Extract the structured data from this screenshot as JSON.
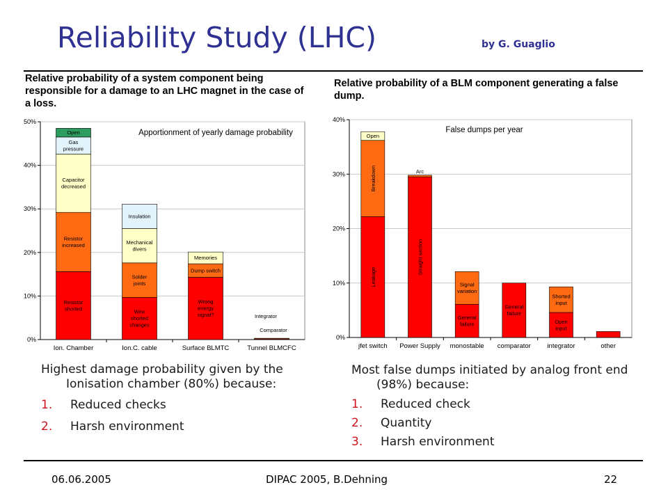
{
  "slide": {
    "title": "Reliability Study (LHC)",
    "byline": "by G. Guaglio",
    "left_caption": "Relative probability of a system component being responsible for a damage to an LHC magnet in the case of a loss.",
    "right_caption": "Relative probability of a BLM component generating a false dump.",
    "left_text": {
      "lead": "Highest damage probability given by the Ionisation chamber (80%) because:",
      "items": [
        {
          "num": "1.",
          "text": "Reduced checks"
        },
        {
          "num": "2.",
          "text": "Harsh environment"
        }
      ]
    },
    "right_text": {
      "lead": "Most false dumps initiated by analog front end (98%) because:",
      "items": [
        {
          "num": "1.",
          "text": "Reduced check"
        },
        {
          "num": "2.",
          "text": "Quantity"
        },
        {
          "num": "3.",
          "text": "Harsh environment"
        }
      ]
    },
    "footer": {
      "date": "06.06.2005",
      "center": "DIPAC 2005, B.Dehning",
      "page": "22"
    }
  },
  "colors": {
    "title": "#2e3092",
    "red": "#ff0000",
    "orange": "#ff6a13",
    "cream": "#ffffc8",
    "light_blue": "#e2f3fb",
    "green": "#2c9c5f",
    "list_number": "#d0121b"
  },
  "chart_data": [
    {
      "type": "bar",
      "stacked": true,
      "title": "Apportionment of yearly damage probability",
      "ylim": [
        0,
        50
      ],
      "yticks": [
        0,
        10,
        20,
        30,
        40,
        50
      ],
      "ytick_labels": [
        "0%",
        "10%",
        "20%",
        "30%",
        "40%",
        "50%"
      ],
      "grid": true,
      "categories": [
        "Ion. Chamber",
        "Ion.C. cable",
        "Surface BLMTC",
        "Tunnel BLMCFC"
      ],
      "stacks": [
        [
          {
            "label": "Resistor shorted",
            "value": 15.6,
            "color": "red"
          },
          {
            "label": "Resistor increased",
            "value": 13.6,
            "color": "orange"
          },
          {
            "label": "Capacitor decreased",
            "value": 13.4,
            "color": "cream"
          },
          {
            "label": "Gas pressure",
            "value": 3.9,
            "color": "light_blue"
          },
          {
            "label": "Open",
            "value": 2.0,
            "color": "green"
          }
        ],
        [
          {
            "label": "Wire shorted changes",
            "value": 9.7,
            "color": "red"
          },
          {
            "label": "Solder joints",
            "value": 7.9,
            "color": "orange"
          },
          {
            "label": "Mechanical divers",
            "value": 7.9,
            "color": "cream"
          },
          {
            "label": "Insulation",
            "value": 5.6,
            "color": "light_blue"
          }
        ],
        [
          {
            "label": "Wrong energy signal?",
            "value": 14.3,
            "color": "red"
          },
          {
            "label": "Dump switch",
            "value": 3.1,
            "color": "orange"
          },
          {
            "label": "Memories",
            "value": 2.7,
            "color": "cream"
          }
        ],
        [
          {
            "label": "Comparator",
            "value": 0.15,
            "color": "red"
          },
          {
            "label": "Integrator",
            "value": 0.15,
            "color": "orange"
          }
        ]
      ]
    },
    {
      "type": "bar",
      "stacked": true,
      "title": "False dumps per year",
      "ylim": [
        0,
        40
      ],
      "yticks": [
        0,
        10,
        20,
        30,
        40
      ],
      "ytick_labels": [
        "0%",
        "10%",
        "20%",
        "30%",
        "40%"
      ],
      "grid": true,
      "categories": [
        "jfet switch",
        "Power Supply",
        "monostable",
        "comparator",
        "integrator",
        "other"
      ],
      "stacks": [
        [
          {
            "label": "Leakage",
            "value": 22.2,
            "color": "red"
          },
          {
            "label": "Breakdown",
            "value": 14.0,
            "color": "orange"
          },
          {
            "label": "Open",
            "value": 1.6,
            "color": "cream"
          }
        ],
        [
          {
            "label": "Straight section",
            "value": 29.5,
            "color": "red"
          },
          {
            "label": "Arc",
            "value": 0.3,
            "color": "orange"
          }
        ],
        [
          {
            "label": "General failure",
            "value": 6.1,
            "color": "red"
          },
          {
            "label": "Signal variation",
            "value": 6.0,
            "color": "orange"
          }
        ],
        [
          {
            "label": "General failure",
            "value": 10.0,
            "color": "red"
          }
        ],
        [
          {
            "label": "Open input",
            "value": 4.6,
            "color": "red"
          },
          {
            "label": "Shorted input",
            "value": 4.7,
            "color": "orange"
          }
        ],
        [
          {
            "label": "",
            "value": 1.1,
            "color": "red"
          }
        ]
      ]
    }
  ]
}
